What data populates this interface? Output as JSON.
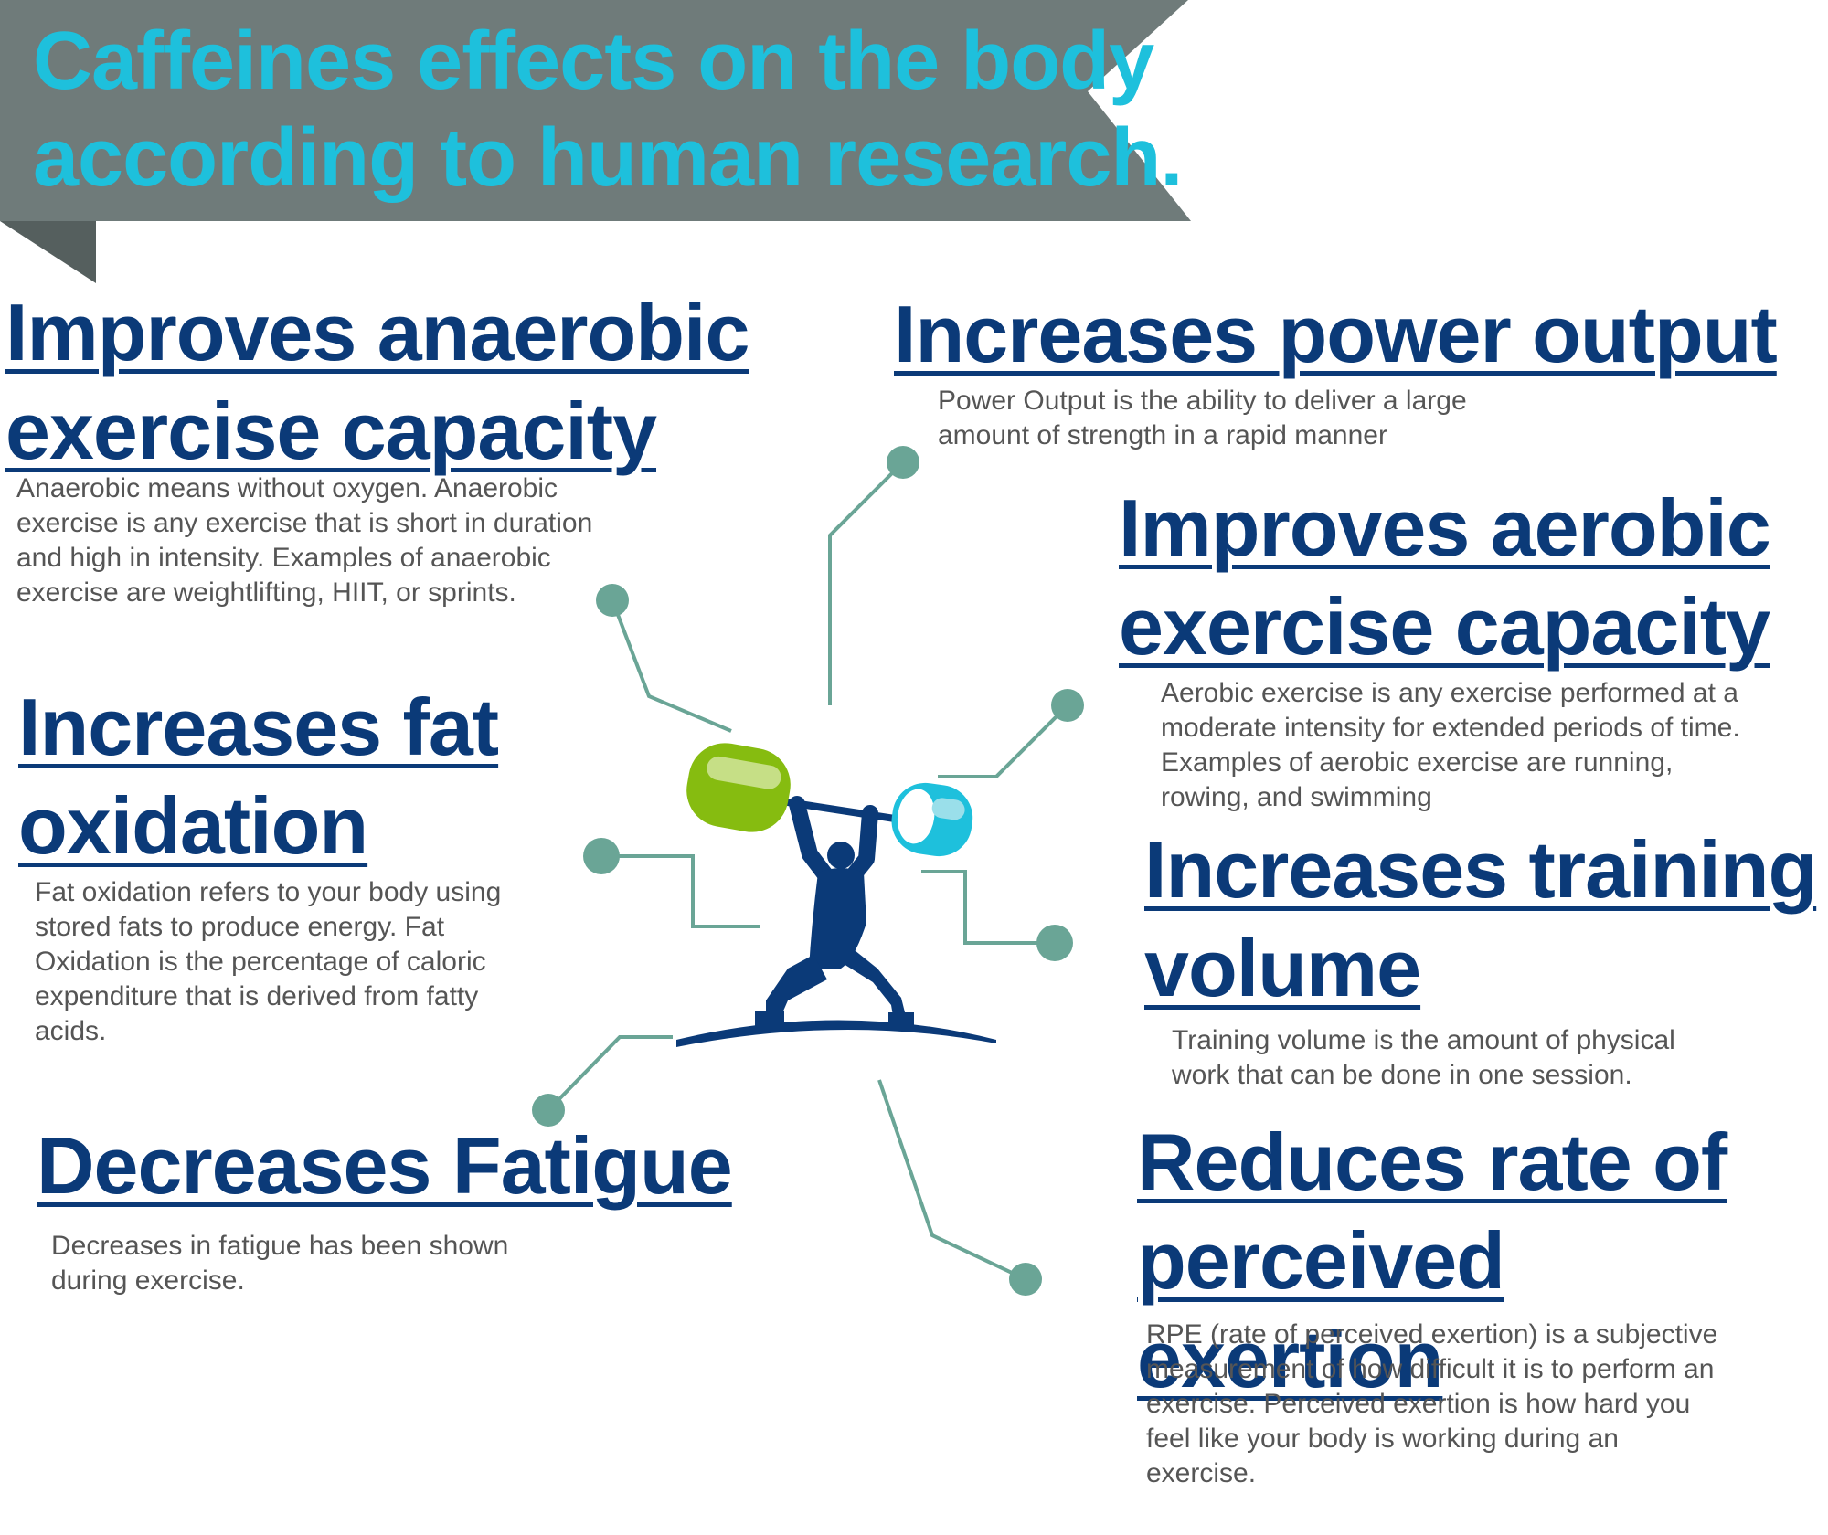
{
  "title": {
    "line1": "Caffeines effects on the body",
    "line2": "according to human research."
  },
  "colors": {
    "banner": "#6f7b7a",
    "banner_fold": "#555f5e",
    "title_text": "#1ec0dc",
    "heading": "#0b3a78",
    "body_text": "#555555",
    "connector": "#6aa596",
    "lifter": "#0b3a78",
    "plate_green": "#86bc10",
    "plate_cyan": "#1ec0dc"
  },
  "effects": [
    {
      "heading": "Improves anaerobic exercise capacity",
      "description": "Anaerobic means without oxygen. Anaerobic exercise is any exercise that is short in duration and high in intensity. Examples of anaerobic exercise are weightlifting, HIIT, or sprints."
    },
    {
      "heading": "Increases fat oxidation",
      "description": "Fat oxidation refers to your body using stored fats to produce energy. Fat Oxidation is the percentage of caloric expenditure that is derived from fatty acids."
    },
    {
      "heading": "Decreases Fatigue",
      "description": "Decreases in fatigue has been shown during exercise."
    },
    {
      "heading": "Increases power output",
      "description": "Power Output is the ability to deliver a large amount of strength in a rapid manner"
    },
    {
      "heading": "Improves aerobic exercise capacity",
      "description": "Aerobic exercise is any exercise performed at a moderate intensity for extended periods of time. Examples of aerobic exercise are running, rowing, and swimming"
    },
    {
      "heading": "Increases training volume",
      "description": "Training volume is the amount of physical work that can be done in one session."
    },
    {
      "heading": "Reduces rate of perceived exertion",
      "description": "RPE  (rate of perceived exertion) is a subjective measurement of how difficult it is to perform an exercise. Perceived exertion is how hard you feel like your body is working during an exercise."
    }
  ]
}
